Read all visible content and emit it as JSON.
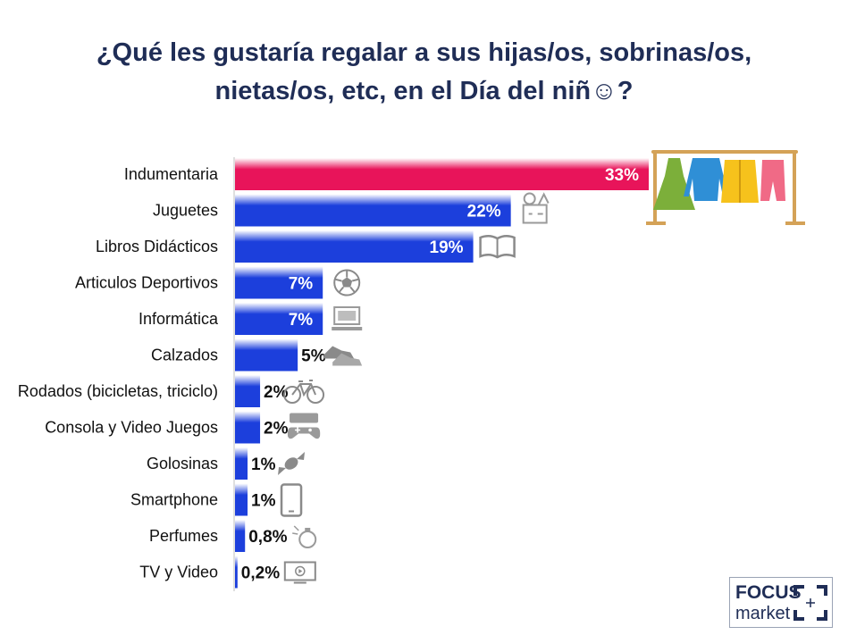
{
  "title_line1": "¿Qué les gustaría regalar a sus hijas/os, sobrinas/os,",
  "title_line2": "nietas/os, etc, en el Día del niñ☺?",
  "logo": {
    "line1": "FOCUS",
    "line2": "market"
  },
  "colors": {
    "highlight": "#e8145a",
    "bar": "#1c3fdc",
    "title": "#1f2d56"
  },
  "chart_data": {
    "type": "bar",
    "orientation": "horizontal",
    "categories": [
      "Indumentaria",
      "Juguetes",
      "Libros Didácticos",
      "Articulos Deportivos",
      "Informática",
      "Calzados",
      "Rodados (bicicletas, triciclo)",
      "Consola y Video Juegos",
      "Golosinas",
      "Smartphone",
      "Perfumes",
      "TV y Video"
    ],
    "values": [
      33,
      22,
      19,
      7,
      7,
      5,
      2,
      2,
      1,
      1,
      0.8,
      0.2
    ],
    "value_labels": [
      "33%",
      "22%",
      "19%",
      "7%",
      "7%",
      "5%",
      "2%",
      "2%",
      "1%",
      "1%",
      "0,8%",
      "0,2%"
    ],
    "icons": [
      "clothes-rack-icon",
      "toys-box-icon",
      "book-icon",
      "soccer-ball-icon",
      "computer-icon",
      "sneakers-icon",
      "bicycle-icon",
      "game-console-icon",
      "candy-icon",
      "smartphone-icon",
      "perfume-icon",
      "tv-icon"
    ],
    "highlight_index": 0,
    "xlim": [
      0,
      33
    ],
    "grid": false,
    "legend": "none"
  }
}
